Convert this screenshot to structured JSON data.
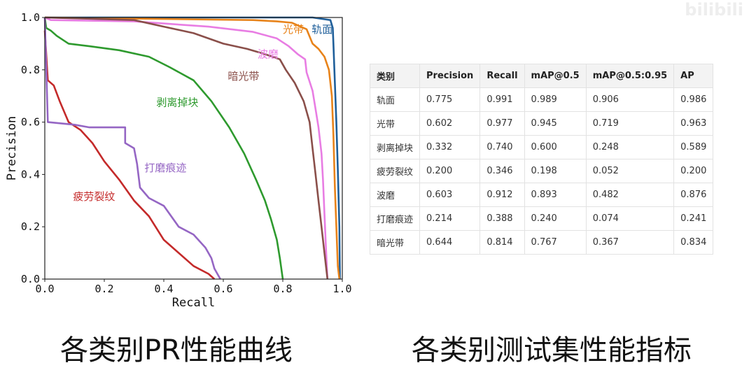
{
  "watermark": "bilibili",
  "captions": {
    "left": "各类别PR性能曲线",
    "right": "各类别测试集性能指标"
  },
  "chart_data": {
    "type": "line",
    "xlabel": "Recall",
    "ylabel": "Precision",
    "xlim": [
      0,
      1
    ],
    "ylim": [
      0,
      1
    ],
    "x_ticks": [
      "0.0",
      "0.2",
      "0.4",
      "0.6",
      "0.8",
      "1.0"
    ],
    "y_ticks": [
      "0.0",
      "0.2",
      "0.4",
      "0.6",
      "0.8",
      "1.0"
    ],
    "grid": false,
    "series": [
      {
        "name": "轨面",
        "color": "#1f5f9a",
        "points": [
          [
            0,
            1.0
          ],
          [
            0.9,
            1.0
          ],
          [
            0.93,
            0.995
          ],
          [
            0.96,
            0.99
          ],
          [
            0.968,
            0.96
          ],
          [
            0.97,
            0.9
          ],
          [
            0.975,
            0.75
          ],
          [
            0.98,
            0.6
          ],
          [
            0.985,
            0.42
          ],
          [
            0.99,
            0.2
          ],
          [
            0.992,
            0.0
          ]
        ]
      },
      {
        "name": "光带",
        "color": "#e8831a",
        "points": [
          [
            0,
            1.0
          ],
          [
            0.7,
            0.99
          ],
          [
            0.78,
            0.985
          ],
          [
            0.83,
            0.98
          ],
          [
            0.86,
            0.965
          ],
          [
            0.88,
            0.955
          ],
          [
            0.9,
            0.9
          ],
          [
            0.92,
            0.88
          ],
          [
            0.94,
            0.85
          ],
          [
            0.955,
            0.8
          ],
          [
            0.965,
            0.7
          ],
          [
            0.97,
            0.55
          ],
          [
            0.975,
            0.35
          ],
          [
            0.98,
            0.2
          ],
          [
            0.985,
            0.05
          ],
          [
            0.99,
            0.0
          ]
        ]
      },
      {
        "name": "剥离掉块",
        "color": "#2e9a2e",
        "points": [
          [
            0,
            1.0
          ],
          [
            0.005,
            0.96
          ],
          [
            0.02,
            0.95
          ],
          [
            0.04,
            0.93
          ],
          [
            0.08,
            0.9
          ],
          [
            0.15,
            0.89
          ],
          [
            0.25,
            0.875
          ],
          [
            0.35,
            0.85
          ],
          [
            0.42,
            0.81
          ],
          [
            0.5,
            0.76
          ],
          [
            0.56,
            0.68
          ],
          [
            0.62,
            0.58
          ],
          [
            0.67,
            0.48
          ],
          [
            0.71,
            0.38
          ],
          [
            0.74,
            0.3
          ],
          [
            0.76,
            0.23
          ],
          [
            0.78,
            0.15
          ],
          [
            0.79,
            0.08
          ],
          [
            0.8,
            0.0
          ]
        ]
      },
      {
        "name": "疲劳裂纹",
        "color": "#c42a2a",
        "points": [
          [
            0,
            0.95
          ],
          [
            0.01,
            0.76
          ],
          [
            0.03,
            0.74
          ],
          [
            0.05,
            0.68
          ],
          [
            0.08,
            0.6
          ],
          [
            0.12,
            0.57
          ],
          [
            0.16,
            0.52
          ],
          [
            0.2,
            0.45
          ],
          [
            0.25,
            0.38
          ],
          [
            0.3,
            0.3
          ],
          [
            0.35,
            0.24
          ],
          [
            0.4,
            0.15
          ],
          [
            0.45,
            0.1
          ],
          [
            0.5,
            0.05
          ],
          [
            0.55,
            0.02
          ],
          [
            0.57,
            0.0
          ]
        ]
      },
      {
        "name": "波磨",
        "color": "#e87de3",
        "points": [
          [
            0,
            1.0
          ],
          [
            0.02,
            0.99
          ],
          [
            0.3,
            0.985
          ],
          [
            0.55,
            0.965
          ],
          [
            0.7,
            0.945
          ],
          [
            0.78,
            0.92
          ],
          [
            0.82,
            0.89
          ],
          [
            0.85,
            0.86
          ],
          [
            0.875,
            0.84
          ],
          [
            0.88,
            0.79
          ],
          [
            0.9,
            0.72
          ],
          [
            0.91,
            0.65
          ],
          [
            0.92,
            0.58
          ],
          [
            0.93,
            0.48
          ],
          [
            0.935,
            0.38
          ],
          [
            0.94,
            0.25
          ],
          [
            0.945,
            0.12
          ],
          [
            0.95,
            0.0
          ]
        ]
      },
      {
        "name": "打磨痕迹",
        "color": "#9566c4",
        "points": [
          [
            0,
            1.0
          ],
          [
            0.01,
            0.6
          ],
          [
            0.1,
            0.59
          ],
          [
            0.15,
            0.58
          ],
          [
            0.27,
            0.58
          ],
          [
            0.27,
            0.52
          ],
          [
            0.3,
            0.5
          ],
          [
            0.31,
            0.44
          ],
          [
            0.32,
            0.35
          ],
          [
            0.35,
            0.31
          ],
          [
            0.4,
            0.28
          ],
          [
            0.45,
            0.2
          ],
          [
            0.5,
            0.17
          ],
          [
            0.54,
            0.12
          ],
          [
            0.56,
            0.08
          ],
          [
            0.57,
            0.04
          ],
          [
            0.59,
            0.0
          ]
        ]
      },
      {
        "name": "暗光带",
        "color": "#8a4f4a",
        "points": [
          [
            0,
            1.0
          ],
          [
            0.3,
            0.99
          ],
          [
            0.4,
            0.965
          ],
          [
            0.5,
            0.94
          ],
          [
            0.6,
            0.9
          ],
          [
            0.68,
            0.88
          ],
          [
            0.74,
            0.86
          ],
          [
            0.79,
            0.84
          ],
          [
            0.81,
            0.8
          ],
          [
            0.84,
            0.75
          ],
          [
            0.87,
            0.68
          ],
          [
            0.89,
            0.6
          ],
          [
            0.9,
            0.5
          ],
          [
            0.91,
            0.4
          ],
          [
            0.92,
            0.3
          ],
          [
            0.93,
            0.2
          ],
          [
            0.94,
            0.1
          ],
          [
            0.95,
            0.0
          ]
        ]
      }
    ],
    "annotations": [
      {
        "text": "光带",
        "x": 0.8,
        "y": 0.955,
        "color": "#e8831a"
      },
      {
        "text": "轨面",
        "x": 0.897,
        "y": 0.955,
        "color": "#1f5f9a"
      },
      {
        "text": "波磨",
        "x": 0.715,
        "y": 0.86,
        "color": "#e87de3"
      },
      {
        "text": "暗光带",
        "x": 0.615,
        "y": 0.775,
        "color": "#8a4f4a"
      },
      {
        "text": "剥离掉块",
        "x": 0.375,
        "y": 0.675,
        "color": "#2e9a2e"
      },
      {
        "text": "打磨痕迹",
        "x": 0.335,
        "y": 0.425,
        "color": "#9566c4"
      },
      {
        "text": "疲劳裂纹",
        "x": 0.095,
        "y": 0.315,
        "color": "#c42a2a"
      }
    ]
  },
  "table": {
    "headers": [
      "类别",
      "Precision",
      "Recall",
      "mAP@0.5",
      "mAP@0.5:0.95",
      "AP"
    ],
    "rows": [
      [
        "轨面",
        "0.775",
        "0.991",
        "0.989",
        "0.906",
        "0.986"
      ],
      [
        "光带",
        "0.602",
        "0.977",
        "0.945",
        "0.719",
        "0.963"
      ],
      [
        "剥离掉块",
        "0.332",
        "0.740",
        "0.600",
        "0.248",
        "0.589"
      ],
      [
        "疲劳裂纹",
        "0.200",
        "0.346",
        "0.198",
        "0.052",
        "0.200"
      ],
      [
        "波磨",
        "0.603",
        "0.912",
        "0.893",
        "0.482",
        "0.876"
      ],
      [
        "打磨痕迹",
        "0.214",
        "0.388",
        "0.240",
        "0.074",
        "0.241"
      ],
      [
        "暗光带",
        "0.644",
        "0.814",
        "0.767",
        "0.367",
        "0.834"
      ]
    ]
  }
}
